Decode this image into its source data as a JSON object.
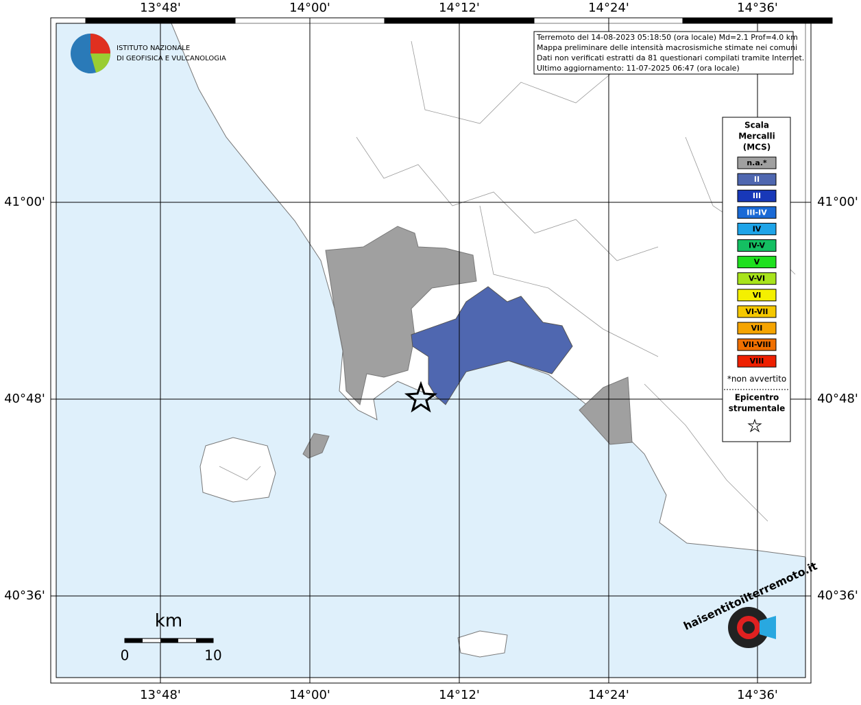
{
  "map": {
    "lon_labels": [
      "13°48'",
      "14°00'",
      "14°12'",
      "14°24'",
      "14°36'"
    ],
    "lat_labels": [
      "41°00'",
      "40°48'",
      "40°36'"
    ],
    "logo": [
      "ISTITUTO NAZIONALE",
      "DI GEOFISICA E VULCANOLOGIA"
    ],
    "info": [
      "Terremoto del 14-08-2023 05:18:50 (ora locale) Md=2.1 Prof=4.0 km",
      "Mappa preliminare delle intensità macrosismiche stimate nei comuni",
      "Dati non verificati estratti da 81 questionari compilati tramite Internet.",
      "Ultimo aggiornamento: 11-07-2025 06:47 (ora locale)"
    ],
    "legend": {
      "title": [
        "Scala",
        "Mercalli",
        "(MCS)"
      ],
      "items": [
        {
          "label": "n.a.*",
          "color": "#a0a0a0"
        },
        {
          "label": "II",
          "color": "#4f67b0"
        },
        {
          "label": "III",
          "color": "#1838b8"
        },
        {
          "label": "III-IV",
          "color": "#1a6ad6"
        },
        {
          "label": "IV",
          "color": "#1ea4e8"
        },
        {
          "label": "IV-V",
          "color": "#14bf62"
        },
        {
          "label": "V",
          "color": "#1fe01f"
        },
        {
          "label": "V-VI",
          "color": "#a8e41c"
        },
        {
          "label": "VI",
          "color": "#f4f000"
        },
        {
          "label": "VI-VII",
          "color": "#f5c800"
        },
        {
          "label": "VII",
          "color": "#f5a400"
        },
        {
          "label": "VII-VIII",
          "color": "#f07000"
        },
        {
          "label": "VIII",
          "color": "#ee2000"
        }
      ],
      "note": "*non avvertito",
      "epicenter": [
        "Epicentro",
        "strumentale"
      ]
    },
    "scale": {
      "unit": "km",
      "ticks": [
        "0",
        "10"
      ]
    },
    "watermark": "haisentitoilterremoto.it"
  }
}
